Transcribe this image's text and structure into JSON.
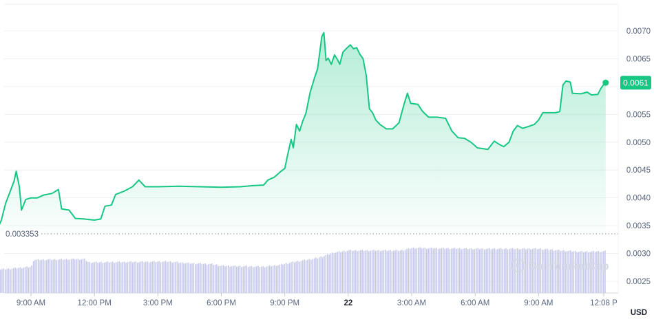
{
  "chart_data": {
    "type": "area",
    "y_axis": {
      "position": "right",
      "ticks": [
        0.0025,
        0.003,
        0.0035,
        0.004,
        0.0045,
        0.005,
        0.0055,
        0.006,
        0.0065,
        0.007
      ],
      "tick_labels": [
        "0.0025",
        "0.0030",
        "0.0035",
        "0.0040",
        "0.0045",
        "0.0050",
        "0.0055",
        "0.0060",
        "0.0065",
        "0.0070"
      ],
      "range": [
        0.0023,
        0.0075
      ],
      "unit_label": "USD"
    },
    "x_axis": {
      "range_hours": [
        7.4,
        36.2
      ],
      "ticks": [
        {
          "hour": 9,
          "label": "9:00 AM",
          "bold": false
        },
        {
          "hour": 12,
          "label": "12:00 PM",
          "bold": false
        },
        {
          "hour": 15,
          "label": "3:00 PM",
          "bold": false
        },
        {
          "hour": 18,
          "label": "6:00 PM",
          "bold": false
        },
        {
          "hour": 21,
          "label": "9:00 PM",
          "bold": false
        },
        {
          "hour": 24,
          "label": "22",
          "bold": true
        },
        {
          "hour": 27,
          "label": "3:00 AM",
          "bold": false
        },
        {
          "hour": 30,
          "label": "6:00 AM",
          "bold": false
        },
        {
          "hour": 33,
          "label": "9:00 AM",
          "bold": false
        },
        {
          "hour": 36.08,
          "label": "12:08 P",
          "bold": false
        }
      ]
    },
    "series": [
      {
        "kind": "price",
        "color": "#16c784",
        "points": [
          [
            7.45,
            0.00347
          ],
          [
            7.6,
            0.0036
          ],
          [
            7.8,
            0.0039
          ],
          [
            8.0,
            0.0041
          ],
          [
            8.2,
            0.0043
          ],
          [
            8.3,
            0.00448
          ],
          [
            8.45,
            0.0042
          ],
          [
            8.55,
            0.00378
          ],
          [
            8.75,
            0.00397
          ],
          [
            9.0,
            0.004
          ],
          [
            9.3,
            0.004
          ],
          [
            9.6,
            0.00405
          ],
          [
            10.0,
            0.00408
          ],
          [
            10.3,
            0.00415
          ],
          [
            10.45,
            0.0038
          ],
          [
            10.8,
            0.00378
          ],
          [
            11.1,
            0.00363
          ],
          [
            11.5,
            0.00362
          ],
          [
            12.0,
            0.0036
          ],
          [
            12.3,
            0.00362
          ],
          [
            12.5,
            0.00385
          ],
          [
            12.8,
            0.00387
          ],
          [
            13.0,
            0.00406
          ],
          [
            13.4,
            0.00412
          ],
          [
            13.8,
            0.0042
          ],
          [
            14.1,
            0.00432
          ],
          [
            14.4,
            0.0042
          ],
          [
            15.0,
            0.0042
          ],
          [
            16.0,
            0.00421
          ],
          [
            17.0,
            0.0042
          ],
          [
            18.0,
            0.00419
          ],
          [
            18.9,
            0.0042
          ],
          [
            19.5,
            0.00422
          ],
          [
            20.0,
            0.00423
          ],
          [
            20.2,
            0.00432
          ],
          [
            20.5,
            0.00437
          ],
          [
            20.8,
            0.00447
          ],
          [
            21.0,
            0.00453
          ],
          [
            21.15,
            0.0048
          ],
          [
            21.3,
            0.00505
          ],
          [
            21.4,
            0.0049
          ],
          [
            21.55,
            0.00532
          ],
          [
            21.7,
            0.0052
          ],
          [
            21.85,
            0.00538
          ],
          [
            22.0,
            0.00552
          ],
          [
            22.2,
            0.0059
          ],
          [
            22.4,
            0.00615
          ],
          [
            22.55,
            0.00632
          ],
          [
            22.75,
            0.0069
          ],
          [
            22.85,
            0.00697
          ],
          [
            22.95,
            0.00647
          ],
          [
            23.05,
            0.00651
          ],
          [
            23.2,
            0.0064
          ],
          [
            23.35,
            0.00657
          ],
          [
            23.5,
            0.00648
          ],
          [
            23.6,
            0.0064
          ],
          [
            23.75,
            0.00662
          ],
          [
            23.9,
            0.00668
          ],
          [
            24.1,
            0.00675
          ],
          [
            24.25,
            0.00668
          ],
          [
            24.4,
            0.0067
          ],
          [
            24.55,
            0.00658
          ],
          [
            24.7,
            0.0065
          ],
          [
            24.85,
            0.0062
          ],
          [
            25.0,
            0.0056
          ],
          [
            25.15,
            0.00553
          ],
          [
            25.3,
            0.0054
          ],
          [
            25.5,
            0.00532
          ],
          [
            25.8,
            0.00524
          ],
          [
            26.1,
            0.00524
          ],
          [
            26.4,
            0.00535
          ],
          [
            26.65,
            0.0057
          ],
          [
            26.8,
            0.00588
          ],
          [
            26.95,
            0.0057
          ],
          [
            27.3,
            0.00568
          ],
          [
            27.5,
            0.00556
          ],
          [
            27.8,
            0.00545
          ],
          [
            28.2,
            0.00545
          ],
          [
            28.6,
            0.00543
          ],
          [
            28.9,
            0.0052
          ],
          [
            29.2,
            0.00508
          ],
          [
            29.5,
            0.00507
          ],
          [
            29.8,
            0.005
          ],
          [
            30.1,
            0.0049
          ],
          [
            30.6,
            0.00487
          ],
          [
            30.9,
            0.00502
          ],
          [
            31.1,
            0.00497
          ],
          [
            31.35,
            0.00492
          ],
          [
            31.6,
            0.005
          ],
          [
            31.8,
            0.0052
          ],
          [
            32.0,
            0.0053
          ],
          [
            32.25,
            0.00525
          ],
          [
            32.5,
            0.00528
          ],
          [
            32.8,
            0.00532
          ],
          [
            33.0,
            0.0054
          ],
          [
            33.2,
            0.00553
          ],
          [
            33.5,
            0.00553
          ],
          [
            33.8,
            0.00553
          ],
          [
            34.0,
            0.00555
          ],
          [
            34.15,
            0.00603
          ],
          [
            34.3,
            0.0061
          ],
          [
            34.5,
            0.00608
          ],
          [
            34.6,
            0.00588
          ],
          [
            35.0,
            0.00587
          ],
          [
            35.3,
            0.0059
          ],
          [
            35.5,
            0.00585
          ],
          [
            35.8,
            0.00586
          ],
          [
            35.95,
            0.00597
          ],
          [
            36.1,
            0.00605
          ],
          [
            36.17,
            0.00607
          ]
        ]
      },
      {
        "kind": "volume",
        "color": "#c6cae8",
        "relative_levels": [
          [
            7.45,
            0.55
          ],
          [
            9.0,
            0.62
          ],
          [
            9.1,
            0.78
          ],
          [
            11.5,
            0.8
          ],
          [
            11.7,
            0.72
          ],
          [
            15.5,
            0.74
          ],
          [
            16.4,
            0.7
          ],
          [
            17.5,
            0.68
          ],
          [
            18.0,
            0.64
          ],
          [
            20.0,
            0.62
          ],
          [
            20.7,
            0.66
          ],
          [
            21.5,
            0.74
          ],
          [
            22.5,
            0.82
          ],
          [
            23.3,
            0.95
          ],
          [
            24.0,
            1.0
          ],
          [
            26.5,
            1.0
          ],
          [
            27.0,
            1.06
          ],
          [
            30.0,
            1.04
          ],
          [
            33.0,
            1.04
          ],
          [
            34.0,
            1.0
          ],
          [
            35.0,
            0.97
          ],
          [
            36.17,
            0.98
          ]
        ]
      }
    ],
    "open_price_label": "0.003353",
    "open_price": 0.003353,
    "last_price_label": "0.0061",
    "last_price": 0.00607,
    "watermark": "CoinMarketCap"
  }
}
